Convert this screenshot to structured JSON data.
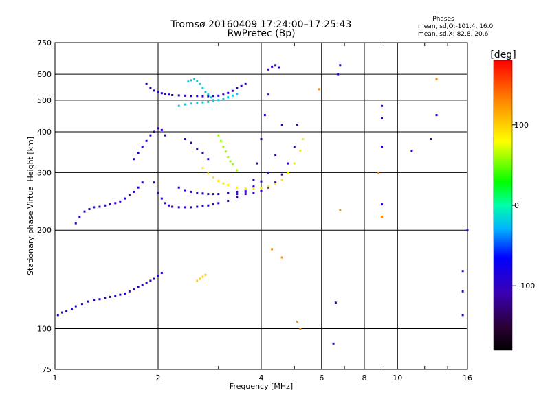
{
  "chart_data": {
    "type": "scatter",
    "title": "Tromsø 20160409 17:24:00–17:25:43",
    "subtitle": "RwPretec (Bp)",
    "xlabel": "Frequency [MHz]",
    "ylabel": "Stationary phase Virtual Height [km]",
    "x_scale": "log",
    "y_scale": "log",
    "xlim": [
      1,
      16
    ],
    "ylim": [
      75,
      750
    ],
    "x_ticks": [
      1,
      2,
      4,
      6,
      8,
      10,
      16
    ],
    "x_tick_labels": [
      "1",
      "2",
      "4",
      "6",
      "8",
      "10",
      "16"
    ],
    "y_ticks": [
      75,
      100,
      200,
      300,
      400,
      500,
      600,
      750
    ],
    "y_tick_labels": [
      "75",
      "100",
      "200",
      "300",
      "400",
      "500",
      "600",
      "750"
    ],
    "grid": true,
    "colorbar": {
      "label": "[deg]",
      "range": [
        -180,
        180
      ],
      "ticks": [
        100,
        0,
        -100
      ],
      "tick_labels": [
        "100",
        "0",
        "−100"
      ]
    },
    "legend_title": "Phases",
    "stats": [
      "mean, sd,O:-101.4, 16.0",
      "mean, sd,X: 82.8, 20.6"
    ],
    "series": [
      {
        "x": [
          1.02,
          1.05,
          1.08,
          1.12,
          1.15,
          1.2,
          1.25,
          1.3,
          1.35,
          1.4,
          1.45,
          1.5,
          1.55,
          1.6,
          1.65,
          1.7,
          1.75,
          1.8,
          1.85,
          1.9,
          1.95,
          2.0,
          2.05
        ],
        "y": [
          110,
          112,
          113,
          115,
          117,
          119,
          121,
          122,
          123,
          124,
          125,
          126,
          127,
          128,
          130,
          132,
          134,
          136,
          138,
          140,
          142,
          145,
          148
        ],
        "phase": -100
      },
      {
        "x": [
          1.15,
          1.18,
          1.22,
          1.26,
          1.3,
          1.35,
          1.4,
          1.45,
          1.5,
          1.55,
          1.6,
          1.65,
          1.7,
          1.75,
          1.8
        ],
        "y": [
          210,
          220,
          228,
          232,
          235,
          236,
          238,
          240,
          242,
          245,
          250,
          256,
          262,
          270,
          280
        ],
        "phase": -100
      },
      {
        "x": [
          1.7,
          1.75,
          1.8,
          1.85,
          1.9,
          1.95,
          2.0,
          2.05,
          2.1
        ],
        "y": [
          330,
          345,
          360,
          375,
          390,
          400,
          410,
          405,
          390
        ],
        "phase": -100
      },
      {
        "x": [
          1.85,
          1.9,
          1.95,
          2.0,
          2.05,
          2.1,
          2.15,
          2.2,
          2.3,
          2.4,
          2.5,
          2.6,
          2.7,
          2.8,
          2.9,
          3.0,
          3.1,
          3.2,
          3.3,
          3.4,
          3.5,
          3.6
        ],
        "y": [
          560,
          545,
          535,
          530,
          525,
          522,
          520,
          518,
          517,
          516,
          515,
          515,
          514,
          514,
          515,
          516,
          520,
          526,
          534,
          544,
          552,
          560
        ],
        "phase": -95
      },
      {
        "x": [
          2.45,
          2.5,
          2.55,
          2.6,
          2.65,
          2.7,
          2.75,
          2.8,
          2.85,
          2.9
        ],
        "y": [
          570,
          575,
          580,
          572,
          560,
          545,
          530,
          520,
          510,
          500
        ],
        "phase": -20
      },
      {
        "x": [
          2.3,
          2.4,
          2.5,
          2.6,
          2.7,
          2.8,
          2.9,
          3.0,
          3.1,
          3.2,
          3.3,
          3.4
        ],
        "y": [
          480,
          485,
          488,
          490,
          492,
          494,
          497,
          500,
          505,
          510,
          516,
          522
        ],
        "phase": -20
      },
      {
        "x": [
          1.95,
          2.0,
          2.05,
          2.1,
          2.15,
          2.2,
          2.3,
          2.4,
          2.5,
          2.6,
          2.7,
          2.8,
          2.9,
          3.0,
          3.2,
          3.4,
          3.6,
          3.8,
          3.9,
          4.0,
          4.1,
          4.2
        ],
        "y": [
          280,
          260,
          250,
          242,
          238,
          236,
          235,
          235,
          235,
          236,
          237,
          238,
          240,
          242,
          246,
          252,
          262,
          285,
          320,
          380,
          450,
          520
        ],
        "phase": -100
      },
      {
        "x": [
          2.3,
          2.4,
          2.5,
          2.6,
          2.7,
          2.8,
          2.9,
          3.0,
          3.2,
          3.4,
          3.6,
          3.8,
          4.0,
          4.2,
          4.4,
          4.6
        ],
        "y": [
          270,
          265,
          262,
          260,
          259,
          258,
          258,
          258,
          260,
          262,
          266,
          272,
          282,
          300,
          340,
          420
        ],
        "phase": -95
      },
      {
        "x": [
          3.2,
          3.4,
          3.6,
          3.8,
          4.0,
          4.2,
          4.4,
          4.6,
          4.8,
          5.0,
          5.1
        ],
        "y": [
          260,
          258,
          258,
          260,
          264,
          270,
          280,
          296,
          320,
          360,
          420
        ],
        "phase": -105
      },
      {
        "x": [
          2.7,
          2.8,
          2.9,
          3.0,
          3.1,
          3.2,
          3.4,
          3.6,
          3.8,
          4.0,
          4.2,
          4.4,
          4.6,
          4.8,
          5.0,
          5.2,
          5.3
        ],
        "y": [
          310,
          298,
          290,
          283,
          278,
          275,
          270,
          268,
          268,
          269,
          272,
          277,
          285,
          300,
          320,
          350,
          380
        ],
        "phase": 90
      },
      {
        "x": [
          3.0,
          3.05,
          3.1,
          3.15,
          3.2,
          3.25,
          3.3,
          3.4
        ],
        "y": [
          390,
          375,
          360,
          348,
          335,
          325,
          318,
          305
        ],
        "phase": 60
      },
      {
        "x": [
          2.4,
          2.5,
          2.6,
          2.7,
          2.8
        ],
        "y": [
          380,
          370,
          355,
          345,
          330
        ],
        "phase": -90
      },
      {
        "x": [
          2.6,
          2.65,
          2.7,
          2.75
        ],
        "y": [
          140,
          142,
          144,
          146
        ],
        "phase": 100
      },
      {
        "x": [
          4.2,
          4.3,
          4.4,
          4.5
        ],
        "y": [
          620,
          632,
          640,
          630
        ],
        "phase": -100
      },
      {
        "x": [
          6.5,
          6.6,
          6.7,
          6.8,
          9.0,
          9.0,
          9.0,
          9.0,
          11.0,
          12.5,
          13.0,
          15.5,
          15.5,
          15.5,
          16.0
        ],
        "y": [
          90,
          120,
          600,
          640,
          480,
          440,
          360,
          240,
          350,
          380,
          450,
          110,
          130,
          150,
          200
        ],
        "phase": -100
      },
      {
        "x": [
          4.3,
          4.6,
          5.1,
          5.2,
          5.9,
          6.8,
          8.8,
          9.0,
          13.0
        ],
        "y": [
          175,
          165,
          105,
          100,
          540,
          230,
          300,
          220,
          580
        ],
        "phase": 130
      }
    ]
  }
}
